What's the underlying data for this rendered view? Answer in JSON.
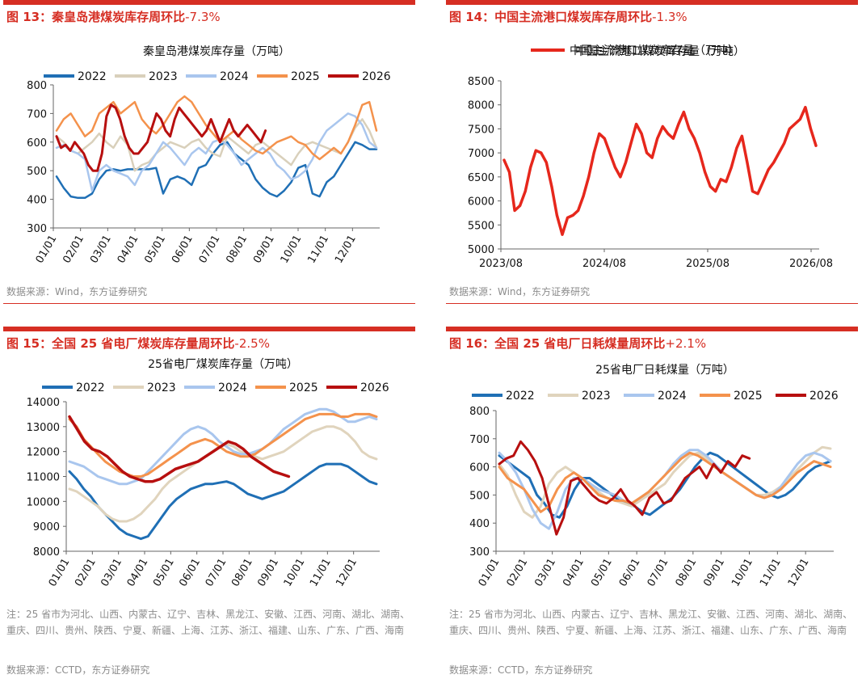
{
  "panels": [
    {
      "id": "p13",
      "title": "图 13：秦皇岛港煤炭库存周环比",
      "title_pct": "-7.3%",
      "source": "数据来源：Wind，东方证券研究",
      "note": ""
    },
    {
      "id": "p14",
      "title": "图 14：中国主流港口煤炭库存周环比",
      "title_pct": "-1.3%",
      "source": "数据来源：Wind，东方证券研究",
      "note": ""
    },
    {
      "id": "p15",
      "title": "图 15：全国 25 省电厂煤炭库存量周环比",
      "title_pct": "-2.5%",
      "source": "数据来源：CCTD，东方证券研究",
      "note": "注：25 省市为河北、山西、内蒙古、辽宁、吉林、黑龙江、安徽、江西、河南、湖北、湖南、重庆、四川、贵州、陕西、宁夏、新疆、上海、江苏、浙江、福建、山东、广东、广西、海南"
    },
    {
      "id": "p16",
      "title": "图 16：全国 25 省电厂日耗煤量周环比",
      "title_pct": "+2.1%",
      "source": "数据来源：CCTD，东方证券研究",
      "note": "注：25 省市为河北、山西、内蒙古、辽宁、吉林、黑龙江、安徽、江西、河南、湖北、湖南、重庆、四川、贵州、陕西、宁夏、新疆、上海、江苏、浙江、福建、山东、广东、广西、海南"
    }
  ],
  "chart_data": [
    {
      "type": "line",
      "title": "秦皇岛港煤炭库存量（万吨）",
      "ylim": [
        300,
        800
      ],
      "yticks": [
        300,
        400,
        500,
        600,
        700,
        800
      ],
      "x_labels": [
        "01/01",
        "02/01",
        "03/01",
        "04/01",
        "05/01",
        "06/01",
        "07/01",
        "08/01",
        "09/01",
        "10/01",
        "11/01",
        "12/01"
      ],
      "legend": "top",
      "series": [
        {
          "name": "2022",
          "color": "#1f6fb5",
          "values": [
            480,
            440,
            410,
            405,
            405,
            420,
            470,
            500,
            505,
            500,
            505,
            505,
            505,
            505,
            510,
            420,
            470,
            480,
            470,
            450,
            510,
            520,
            560,
            590,
            600,
            560,
            540,
            520,
            470,
            440,
            420,
            410,
            430,
            460,
            510,
            520,
            420,
            410,
            460,
            480,
            520,
            560,
            600,
            590,
            575,
            575
          ]
        },
        {
          "name": "2023",
          "color": "#d9d0bb",
          "values": [
            620,
            600,
            570,
            560,
            580,
            600,
            630,
            600,
            580,
            620,
            590,
            500,
            520,
            530,
            560,
            580,
            600,
            590,
            580,
            600,
            610,
            580,
            560,
            550,
            620,
            600,
            580,
            560,
            590,
            600,
            580,
            560,
            540,
            520,
            560,
            590,
            600,
            590,
            580,
            570,
            560,
            600,
            650,
            680,
            640,
            580
          ]
        },
        {
          "name": "2024",
          "color": "#a9c6ee",
          "values": [
            580,
            590,
            570,
            560,
            540,
            430,
            500,
            520,
            500,
            490,
            480,
            450,
            500,
            520,
            560,
            600,
            580,
            550,
            520,
            560,
            580,
            560,
            600,
            610,
            590,
            560,
            520,
            540,
            560,
            580,
            560,
            520,
            500,
            470,
            480,
            500,
            540,
            600,
            640,
            660,
            680,
            700,
            690,
            660,
            600,
            580
          ]
        },
        {
          "name": "2025",
          "color": "#f4924c",
          "values": [
            640,
            680,
            700,
            660,
            620,
            640,
            700,
            720,
            740,
            700,
            720,
            740,
            680,
            650,
            630,
            660,
            700,
            740,
            760,
            740,
            700,
            660,
            630,
            600,
            620,
            640,
            610,
            590,
            570,
            560,
            580,
            600,
            610,
            620,
            600,
            590,
            560,
            540,
            560,
            580,
            560,
            600,
            660,
            730,
            740,
            640
          ]
        },
        {
          "name": "2026",
          "color": "#b70f0f",
          "values": [
            620,
            580,
            590,
            570,
            600,
            580,
            560,
            520,
            500,
            500,
            560,
            690,
            730,
            720,
            680,
            620,
            580,
            560,
            560,
            580,
            600,
            650,
            700,
            680,
            640,
            620,
            680,
            720,
            700,
            680,
            660,
            640,
            620,
            640,
            680,
            640,
            600,
            640,
            680,
            640,
            620,
            640,
            660,
            640,
            620,
            600,
            640
          ]
        }
      ]
    },
    {
      "type": "line",
      "title": "中国主流港口煤炭库存量（万吨）",
      "ylim": [
        5000,
        8500
      ],
      "yticks": [
        5000,
        5500,
        6000,
        6500,
        7000,
        7500,
        8000,
        8500
      ],
      "x_labels": [
        "2023/08",
        "2024/08",
        "2025/08",
        "2026/08"
      ],
      "legend": "top",
      "series": [
        {
          "name": "中国主流港口煤炭库存量（万吨）",
          "color": "#e6271c",
          "values": [
            6850,
            6600,
            5800,
            5900,
            6200,
            6700,
            7050,
            7000,
            6800,
            6300,
            5700,
            5300,
            5650,
            5700,
            5800,
            6100,
            6500,
            7000,
            7400,
            7300,
            7000,
            6700,
            6500,
            6800,
            7200,
            7600,
            7400,
            7000,
            6900,
            7300,
            7550,
            7400,
            7300,
            7600,
            7850,
            7500,
            7300,
            7000,
            6600,
            6300,
            6200,
            6450,
            6400,
            6700,
            7100,
            7350,
            6800,
            6200,
            6150,
            6400,
            6650,
            6800,
            7000,
            7200,
            7500,
            7600,
            7700,
            7950,
            7500,
            7150
          ]
        }
      ]
    },
    {
      "type": "line",
      "title": "25省电厂煤炭库存量（万吨）",
      "ylim": [
        8000,
        14000
      ],
      "yticks": [
        8000,
        9000,
        10000,
        11000,
        12000,
        13000,
        14000
      ],
      "x_labels": [
        "01/01",
        "02/01",
        "03/01",
        "04/01",
        "05/01",
        "06/01",
        "07/01",
        "08/01",
        "09/01",
        "10/01",
        "11/01",
        "12/01"
      ],
      "legend": "top",
      "series": [
        {
          "name": "2022",
          "color": "#1f6fb5",
          "values": [
            11200,
            10900,
            10500,
            10200,
            9800,
            9500,
            9200,
            8900,
            8700,
            8600,
            8500,
            8600,
            9000,
            9400,
            9800,
            10100,
            10300,
            10500,
            10600,
            10700,
            10700,
            10750,
            10800,
            10700,
            10500,
            10300,
            10200,
            10100,
            10200,
            10300,
            10400,
            10600,
            10800,
            11000,
            11200,
            11400,
            11500,
            11500,
            11500,
            11400,
            11200,
            11000,
            10800,
            10700
          ]
        },
        {
          "name": "2023",
          "color": "#e0d4bd",
          "values": [
            10500,
            10400,
            10200,
            10000,
            9800,
            9500,
            9300,
            9200,
            9200,
            9300,
            9500,
            9800,
            10100,
            10500,
            10800,
            11000,
            11200,
            11400,
            11600,
            11800,
            12000,
            12200,
            12300,
            12200,
            12000,
            11900,
            11800,
            11700,
            11800,
            11900,
            12000,
            12200,
            12400,
            12600,
            12800,
            12900,
            13000,
            13000,
            12900,
            12700,
            12400,
            12000,
            11800,
            11700
          ]
        },
        {
          "name": "2024",
          "color": "#a9c6ee",
          "values": [
            11600,
            11500,
            11400,
            11200,
            11000,
            10900,
            10800,
            10700,
            10700,
            10800,
            10900,
            11200,
            11500,
            11800,
            12100,
            12400,
            12700,
            12900,
            13000,
            12900,
            12700,
            12400,
            12200,
            12000,
            11900,
            11900,
            12000,
            12100,
            12300,
            12600,
            12900,
            13100,
            13300,
            13500,
            13600,
            13700,
            13700,
            13600,
            13400,
            13200,
            13200,
            13300,
            13400,
            13300
          ]
        },
        {
          "name": "2025",
          "color": "#f4924c",
          "values": [
            13300,
            13000,
            12500,
            12200,
            11900,
            11600,
            11400,
            11200,
            11100,
            11000,
            11000,
            11100,
            11300,
            11500,
            11700,
            11900,
            12100,
            12300,
            12400,
            12500,
            12400,
            12200,
            12000,
            11900,
            11800,
            11800,
            11900,
            12100,
            12300,
            12500,
            12700,
            12900,
            13100,
            13300,
            13400,
            13500,
            13500,
            13500,
            13400,
            13400,
            13500,
            13500,
            13500,
            13400
          ]
        },
        {
          "name": "2026",
          "color": "#b70f0f",
          "values": [
            13400,
            12900,
            12400,
            12100,
            12000,
            11800,
            11500,
            11200,
            11000,
            10900,
            10800,
            10800,
            10900,
            11100,
            11300,
            11400,
            11500,
            11600,
            11800,
            12000,
            12200,
            12400,
            12300,
            12100,
            11800,
            11600,
            11400,
            11200,
            11100,
            11000
          ]
        }
      ]
    },
    {
      "type": "line",
      "title": "25省电厂日耗煤量（万吨）",
      "ylim": [
        300,
        800
      ],
      "yticks": [
        300,
        400,
        500,
        600,
        700,
        800
      ],
      "x_labels": [
        "01/01",
        "02/01",
        "03/01",
        "04/01",
        "05/01",
        "06/01",
        "07/01",
        "08/01",
        "09/01",
        "10/01",
        "11/01",
        "12/01"
      ],
      "legend": "top",
      "series": [
        {
          "name": "2022",
          "color": "#1f6fb5",
          "values": [
            640,
            620,
            600,
            580,
            560,
            500,
            470,
            430,
            420,
            460,
            520,
            560,
            560,
            540,
            520,
            500,
            480,
            470,
            460,
            440,
            430,
            450,
            470,
            490,
            520,
            560,
            600,
            630,
            650,
            640,
            620,
            600,
            580,
            560,
            540,
            520,
            500,
            490,
            500,
            520,
            550,
            580,
            600,
            610,
            620
          ]
        },
        {
          "name": "2023",
          "color": "#e0d4bd",
          "values": [
            610,
            570,
            500,
            440,
            420,
            460,
            540,
            580,
            600,
            580,
            560,
            540,
            510,
            490,
            480,
            470,
            460,
            480,
            500,
            520,
            540,
            580,
            610,
            640,
            650,
            630,
            600,
            580,
            560,
            540,
            520,
            500,
            500,
            510,
            530,
            560,
            590,
            620,
            650,
            670,
            665
          ]
        },
        {
          "name": "2024",
          "color": "#a9c6ee",
          "values": [
            650,
            620,
            580,
            520,
            450,
            400,
            380,
            440,
            520,
            560,
            560,
            540,
            520,
            510,
            500,
            480,
            470,
            490,
            510,
            540,
            570,
            610,
            640,
            660,
            660,
            640,
            610,
            580,
            560,
            540,
            520,
            500,
            490,
            500,
            530,
            570,
            610,
            640,
            650,
            640,
            620
          ]
        },
        {
          "name": "2025",
          "color": "#f4924c",
          "values": [
            600,
            560,
            540,
            520,
            480,
            440,
            460,
            520,
            560,
            580,
            560,
            530,
            500,
            490,
            480,
            480,
            470,
            490,
            510,
            540,
            570,
            600,
            630,
            650,
            640,
            620,
            600,
            580,
            560,
            540,
            520,
            500,
            490,
            500,
            520,
            550,
            580,
            600,
            620,
            610,
            600
          ]
        },
        {
          "name": "2026",
          "color": "#b70f0f",
          "values": [
            610,
            630,
            640,
            690,
            660,
            620,
            560,
            460,
            360,
            420,
            550,
            560,
            530,
            500,
            480,
            470,
            490,
            520,
            480,
            460,
            430,
            490,
            510,
            470,
            480,
            520,
            560,
            580,
            600,
            560,
            610,
            580,
            620,
            600,
            640,
            630
          ]
        }
      ]
    }
  ]
}
